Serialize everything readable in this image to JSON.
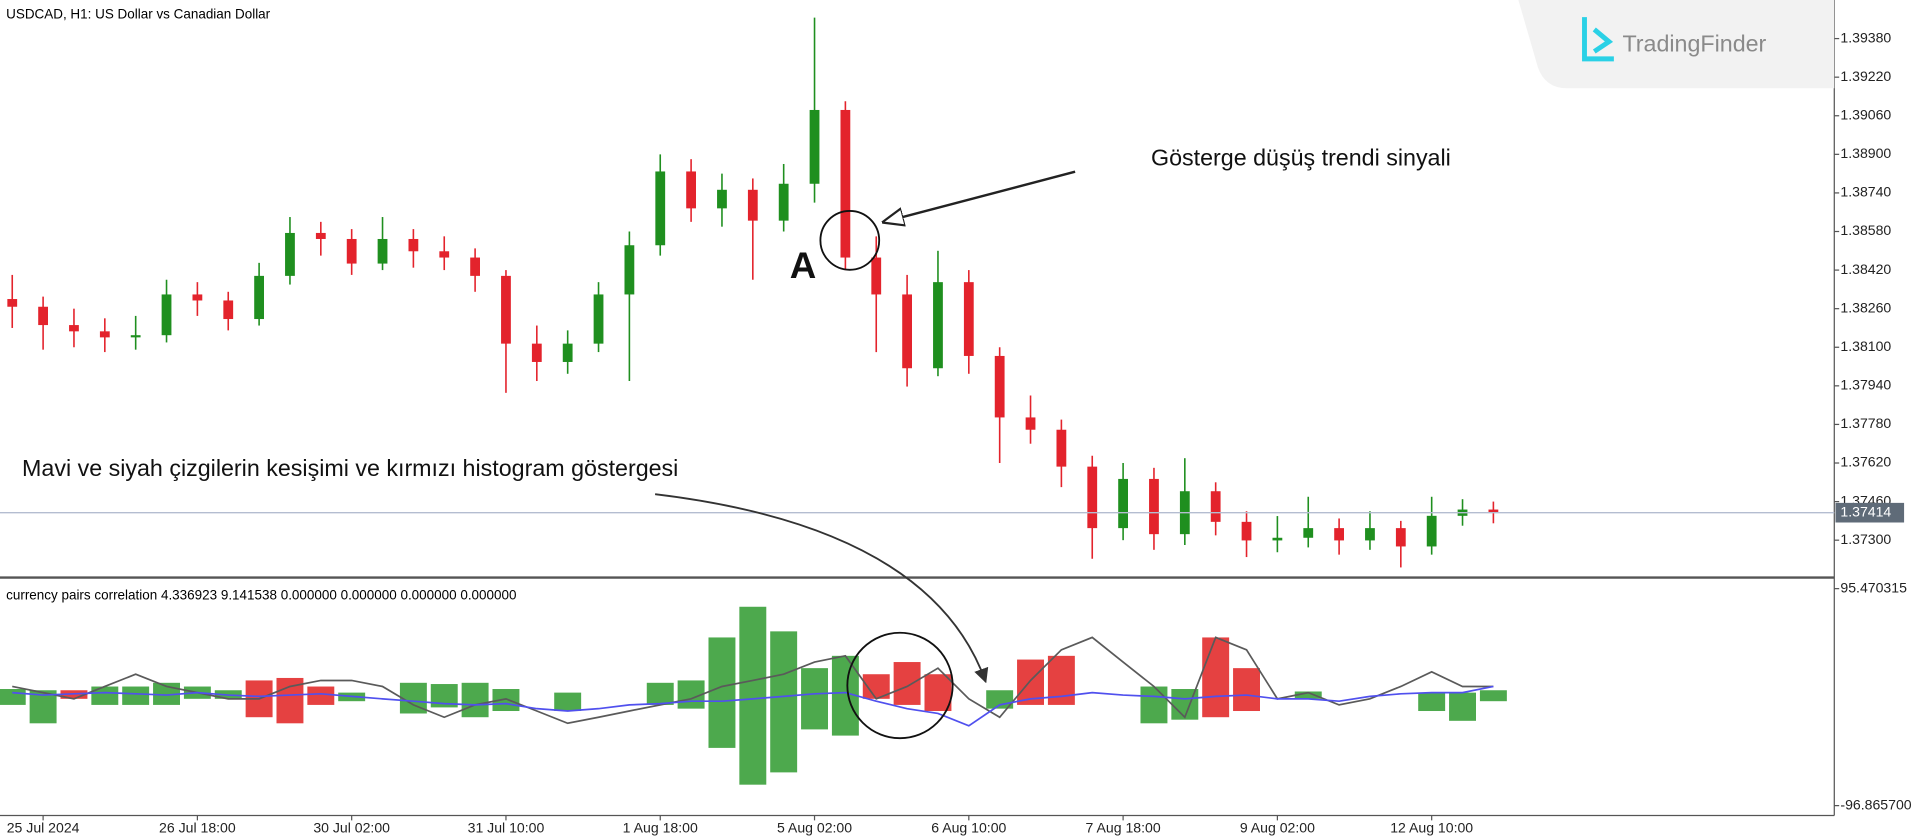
{
  "logo": "TradingFinder",
  "chart_data": [
    {
      "type": "candlestick",
      "title": "USDCAD, H1:  US Dollar vs Canadian Dollar",
      "x": [
        null,
        "25 Jul 2024",
        null,
        null,
        null,
        null,
        "26 Jul 18:00",
        null,
        null,
        null,
        null,
        "30 Jul 02:00",
        null,
        null,
        null,
        null,
        "31 Jul 10:00",
        null,
        null,
        null,
        null,
        "1 Aug 18:00",
        null,
        null,
        null,
        null,
        "5 Aug 02:00",
        null,
        null,
        null,
        null,
        "6 Aug 10:00",
        null,
        null,
        null,
        null,
        "7 Aug 18:00",
        null,
        null,
        null,
        null,
        "9 Aug 02:00",
        null,
        null,
        null,
        null,
        "12 Aug 10:00",
        null,
        null
      ],
      "open": [
        1.383,
        1.38268,
        1.38192,
        1.38166,
        1.38141,
        1.3815,
        1.38319,
        1.38294,
        1.38217,
        1.38396,
        1.38574,
        1.38549,
        1.38447,
        1.38549,
        1.38498,
        1.38472,
        1.38396,
        1.38115,
        1.38039,
        1.38115,
        1.38319,
        1.38523,
        1.38829,
        1.38676,
        1.38753,
        1.38625,
        1.38778,
        1.39084,
        1.38472,
        1.38319,
        1.38013,
        1.3837,
        1.38064,
        1.37809,
        1.37758,
        1.37605,
        1.3735,
        1.37554,
        1.37325,
        1.37503,
        1.37376,
        1.37299,
        1.3731,
        1.3735,
        1.37299,
        1.3735,
        1.37274,
        1.37401,
        1.37427
      ],
      "high": [
        1.384,
        1.3831,
        1.3826,
        1.3822,
        1.3823,
        1.3838,
        1.3837,
        1.3833,
        1.3845,
        1.3864,
        1.3862,
        1.3859,
        1.3864,
        1.3859,
        1.3856,
        1.3851,
        1.3842,
        1.3819,
        1.3817,
        1.3837,
        1.3858,
        1.389,
        1.3888,
        1.3882,
        1.388,
        1.3886,
        1.39467,
        1.3912,
        1.3856,
        1.384,
        1.385,
        1.3842,
        1.381,
        1.379,
        1.378,
        1.3765,
        1.3762,
        1.376,
        1.3764,
        1.3754,
        1.3742,
        1.374,
        1.3748,
        1.3739,
        1.3742,
        1.3738,
        1.3748,
        1.3747,
        1.3746
      ],
      "low": [
        1.3818,
        1.3809,
        1.381,
        1.3808,
        1.3809,
        1.3812,
        1.3823,
        1.3817,
        1.3819,
        1.3836,
        1.3848,
        1.384,
        1.3842,
        1.3843,
        1.3842,
        1.3833,
        1.37911,
        1.3796,
        1.3799,
        1.3808,
        1.3796,
        1.3848,
        1.3862,
        1.386,
        1.3838,
        1.3858,
        1.387,
        1.3842,
        1.3808,
        1.37937,
        1.3798,
        1.3799,
        1.3762,
        1.377,
        1.3752,
        1.37223,
        1.373,
        1.3726,
        1.3728,
        1.3732,
        1.3723,
        1.3725,
        1.3727,
        1.3724,
        1.3726,
        1.37187,
        1.3724,
        1.3736,
        1.3737
      ],
      "close": [
        1.38268,
        1.38192,
        1.38166,
        1.38141,
        1.3815,
        1.38319,
        1.38294,
        1.38217,
        1.38396,
        1.38574,
        1.38549,
        1.38447,
        1.38549,
        1.38498,
        1.38472,
        1.38396,
        1.38115,
        1.38039,
        1.38115,
        1.38319,
        1.38523,
        1.38829,
        1.38676,
        1.38753,
        1.38625,
        1.38778,
        1.39084,
        1.38472,
        1.38319,
        1.38013,
        1.3837,
        1.38064,
        1.37809,
        1.37758,
        1.37605,
        1.3735,
        1.37554,
        1.37325,
        1.37503,
        1.37376,
        1.37299,
        1.3731,
        1.3735,
        1.37299,
        1.3735,
        1.37274,
        1.37401,
        1.37427,
        1.37414
      ],
      "up_color": "#1f8f1f",
      "down_color": "#e3232c",
      "ylim": [
        1.3715,
        1.3954
      ],
      "yticks": [
        {
          "value": 1.3938,
          "label": "1.39380"
        },
        {
          "value": 1.3922,
          "label": "1.39220"
        },
        {
          "value": 1.3906,
          "label": "1.39060"
        },
        {
          "value": 1.389,
          "label": "1.38900"
        },
        {
          "value": 1.3874,
          "label": "1.38740"
        },
        {
          "value": 1.3858,
          "label": "1.38580"
        },
        {
          "value": 1.3842,
          "label": "1.38420"
        },
        {
          "value": 1.3826,
          "label": "1.38260"
        },
        {
          "value": 1.381,
          "label": "1.38100"
        },
        {
          "value": 1.3794,
          "label": "1.37940"
        },
        {
          "value": 1.3778,
          "label": "1.37780"
        },
        {
          "value": 1.3762,
          "label": "1.37620"
        },
        {
          "value": 1.3746,
          "label": "1.37460"
        },
        {
          "value": 1.373,
          "label": "1.37300"
        }
      ],
      "current_price": {
        "value": 1.37414,
        "label": "1.37414"
      },
      "current_price_color": "#b4bdd0",
      "annotations": [
        "Gösterge düşüş trendi sinyali",
        "A",
        "Mavi ve siyah çizgilerin kesişimi ve kırmızı histogram göstergesi"
      ]
    },
    {
      "type": "indicator",
      "title": "currency pairs correlation 4.336923 9.141538 0.000000 0.000000 0.000000 0.000000",
      "series": [
        {
          "color": "#5a5a5a",
          "values": [
            8.7,
            3.3,
            -2.2,
            8.7,
            19.6,
            8.7,
            3.3,
            -2.2,
            -2.2,
            8.7,
            14.1,
            14.1,
            8.7,
            -7.6,
            -18.5,
            -7.6,
            -2.2,
            -13.0,
            -23.9,
            -18.5,
            -13.0,
            -7.6,
            -2.2,
            8.7,
            14.1,
            19.6,
            30.4,
            35.9,
            -2.2,
            8.7,
            25.0,
            -2.2,
            -18.5,
            14.1,
            41.3,
            52.2,
            30.4,
            8.7,
            -18.5,
            52.2,
            41.3,
            -2.2,
            3.3,
            -7.6,
            -2.2,
            8.7,
            21.7,
            8.7,
            8.7
          ]
        },
        {
          "color": "#5050ee",
          "values": [
            3.3,
            1.1,
            2.2,
            3.3,
            2.2,
            1.1,
            3.3,
            1.1,
            0,
            1.1,
            2.2,
            0,
            -2.2,
            -4.3,
            -6.5,
            -7.6,
            -6.5,
            -10.9,
            -13.0,
            -10.9,
            -7.6,
            -6.5,
            -4.3,
            -4.3,
            -2.2,
            0,
            2.2,
            3.3,
            -4.3,
            -10.9,
            -15.2,
            -26.1,
            -7.6,
            -2.2,
            0,
            3.3,
            1.1,
            0,
            -2.2,
            0,
            1.1,
            -2.2,
            -2.2,
            -4.3,
            0,
            2.2,
            3.3,
            3.3,
            8.7
          ]
        }
      ],
      "histogram": {
        "upper": [
          6.5,
          5.4,
          5.4,
          8.7,
          8.7,
          12.0,
          8.7,
          5.4,
          14.1,
          16.3,
          8.7,
          3.3,
          null,
          12.0,
          10.9,
          12.0,
          6.5,
          null,
          3.3,
          null,
          null,
          12.0,
          14.1,
          52.2,
          79.4,
          57.6,
          25.0,
          35.9,
          19.6,
          30.4,
          19.6,
          null,
          5.4,
          32.6,
          35.9,
          null,
          null,
          8.7,
          6.5,
          52.2,
          25.0,
          null,
          4.3,
          null,
          null,
          null,
          3.3,
          3.3,
          5.4
        ],
        "lower": [
          -7.6,
          -23.9,
          -2.2,
          -7.6,
          -7.6,
          -7.6,
          -2.2,
          -2.2,
          -18.5,
          -23.9,
          -7.6,
          -4.3,
          null,
          -15.2,
          -9.8,
          -18.5,
          -13.0,
          null,
          -13.0,
          null,
          null,
          -7.6,
          -10.9,
          -45.7,
          -78.3,
          -67.4,
          -29.3,
          -34.8,
          -2.2,
          -7.6,
          -13.0,
          null,
          -10.9,
          -7.6,
          -7.6,
          null,
          null,
          -23.9,
          -20.7,
          -18.5,
          -13.0,
          null,
          -2.2,
          null,
          null,
          null,
          -13.0,
          -21.7,
          -4.3
        ],
        "colors": [
          "#2e9a2e",
          "#2e9a2e",
          "#e02020",
          "#2e9a2e",
          "#2e9a2e",
          "#2e9a2e",
          "#2e9a2e",
          "#2e9a2e",
          "#e02020",
          "#e02020",
          "#e02020",
          "#2e9a2e",
          null,
          "#2e9a2e",
          "#2e9a2e",
          "#2e9a2e",
          "#2e9a2e",
          null,
          "#2e9a2e",
          null,
          null,
          "#2e9a2e",
          "#2e9a2e",
          "#2e9a2e",
          "#2e9a2e",
          "#2e9a2e",
          "#2e9a2e",
          "#2e9a2e",
          "#e02020",
          "#e02020",
          "#e02020",
          null,
          "#2e9a2e",
          "#e02020",
          "#e02020",
          null,
          null,
          "#2e9a2e",
          "#2e9a2e",
          "#e02020",
          "#e02020",
          null,
          "#2e9a2e",
          null,
          null,
          null,
          "#2e9a2e",
          "#2e9a2e",
          "#2e9a2e"
        ]
      },
      "ylim": [
        -105.6,
        103.1
      ],
      "yticks": [
        {
          "value": 95.470315,
          "label": "95.470315"
        },
        {
          "value": -96.8657,
          "label": "-96.865700"
        }
      ]
    }
  ]
}
